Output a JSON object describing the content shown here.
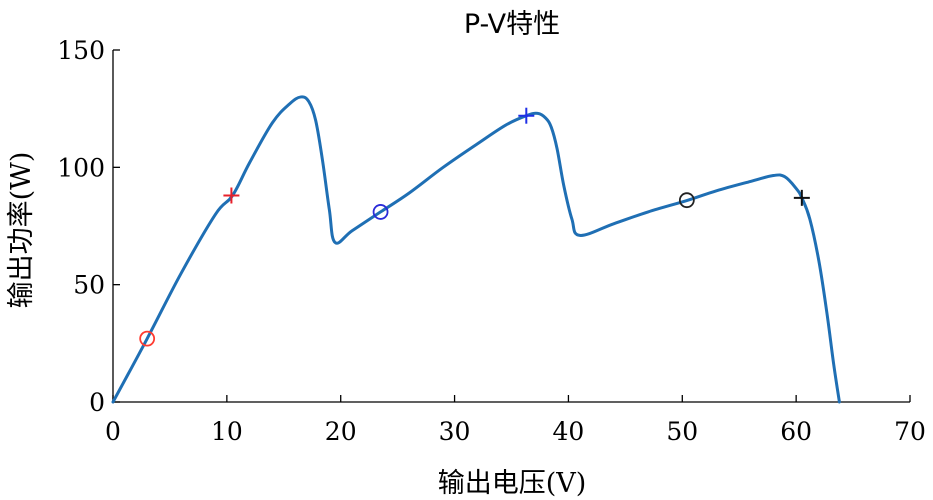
{
  "chart_data": {
    "type": "line",
    "title": "P-V特性",
    "xlabel": "输出电压(V)",
    "ylabel": "输出功率(W)",
    "xlim": [
      0,
      70
    ],
    "ylim": [
      0,
      150
    ],
    "xticks": [
      0,
      10,
      20,
      30,
      40,
      50,
      60,
      70
    ],
    "yticks": [
      0,
      50,
      100,
      150
    ],
    "grid": false,
    "series": [
      {
        "color": "#1f6fb4",
        "x": [
          0,
          3,
          6,
          9,
          10.5,
          12,
          14,
          15.5,
          16.5,
          17.2,
          17.8,
          18.4,
          19,
          19.5,
          21,
          23.5,
          26,
          29,
          32,
          34.5,
          36.3,
          37.3,
          38,
          38.5,
          39,
          39.6,
          40.3,
          41,
          44,
          47,
          50.5,
          53,
          56,
          58,
          59,
          60,
          60.5,
          61.2,
          62,
          62.7,
          63.3,
          63.8
        ],
        "y": [
          0,
          27,
          55,
          80,
          88,
          102,
          119,
          127,
          130,
          128,
          120,
          103,
          82,
          68,
          73,
          81,
          89,
          100,
          110,
          118,
          122,
          123,
          121,
          117,
          108,
          92,
          78,
          71,
          76,
          81,
          86,
          90,
          94,
          96.5,
          96,
          91,
          87,
          78,
          60,
          38,
          16,
          0
        ]
      }
    ],
    "markers": [
      {
        "x": 3.0,
        "y": 27,
        "symbol": "circle",
        "color": "#ff3b30"
      },
      {
        "x": 10.4,
        "y": 88,
        "symbol": "plus",
        "color": "#e8202a"
      },
      {
        "x": 23.5,
        "y": 81,
        "symbol": "circle",
        "color": "#2b2bd9"
      },
      {
        "x": 36.3,
        "y": 122,
        "symbol": "plus",
        "color": "#1f2fe6"
      },
      {
        "x": 50.4,
        "y": 86,
        "symbol": "circle",
        "color": "#222222"
      },
      {
        "x": 60.5,
        "y": 87,
        "symbol": "plus",
        "color": "#111111"
      }
    ]
  }
}
